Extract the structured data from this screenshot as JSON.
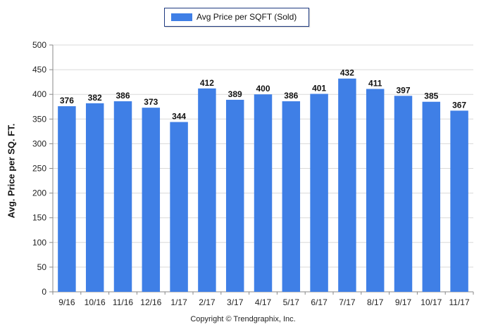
{
  "legend": {
    "label": "Avg Price per SQFT (Sold)",
    "color": "#3f7fe6"
  },
  "footer": {
    "copyright": "Copyright © Trendgraphix, Inc."
  },
  "chart_data": {
    "type": "bar",
    "title": "",
    "xlabel": "",
    "ylabel": "Avg. Price per SQ. FT.",
    "ylim": [
      0,
      500
    ],
    "yticks": [
      0,
      50,
      100,
      150,
      200,
      250,
      300,
      350,
      400,
      450,
      500
    ],
    "grid": true,
    "legend_position": "top",
    "bar_color": "#3f7fe6",
    "categories": [
      "9/16",
      "10/16",
      "11/16",
      "12/16",
      "1/17",
      "2/17",
      "3/17",
      "4/17",
      "5/17",
      "6/17",
      "7/17",
      "8/17",
      "9/17",
      "10/17",
      "11/17"
    ],
    "series": [
      {
        "name": "Avg Price per SQFT (Sold)",
        "values": [
          376,
          382,
          386,
          373,
          344,
          412,
          389,
          400,
          386,
          401,
          432,
          411,
          397,
          385,
          367
        ]
      }
    ]
  }
}
